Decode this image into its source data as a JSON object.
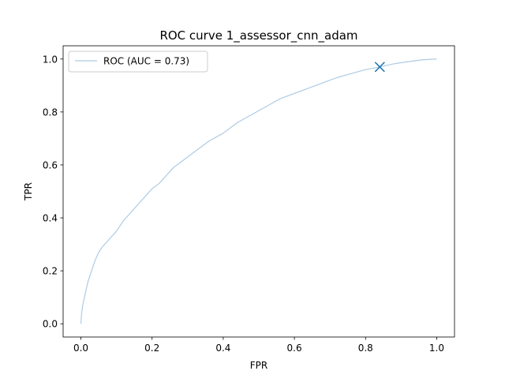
{
  "chart_data": {
    "type": "line",
    "title": "ROC curve 1_assessor_cnn_adam",
    "xlabel": "FPR",
    "ylabel": "TPR",
    "xlim": [
      -0.05,
      1.05
    ],
    "ylim": [
      -0.05,
      1.05
    ],
    "xticks": [
      0.0,
      0.2,
      0.4,
      0.6,
      0.8,
      1.0
    ],
    "yticks": [
      0.0,
      0.2,
      0.4,
      0.6,
      0.8,
      1.0
    ],
    "xtick_labels": [
      "0.0",
      "0.2",
      "0.4",
      "0.6",
      "0.8",
      "1.0"
    ],
    "ytick_labels": [
      "0.0",
      "0.2",
      "0.4",
      "0.6",
      "0.8",
      "1.0"
    ],
    "grid": false,
    "legend_position": "top-left",
    "series": [
      {
        "name": "ROC (AUC = 0.73)",
        "color": "#aecbe4",
        "x": [
          0.0,
          0.002,
          0.005,
          0.01,
          0.015,
          0.02,
          0.03,
          0.04,
          0.05,
          0.06,
          0.08,
          0.1,
          0.12,
          0.14,
          0.16,
          0.18,
          0.2,
          0.22,
          0.24,
          0.26,
          0.28,
          0.3,
          0.33,
          0.36,
          0.4,
          0.44,
          0.48,
          0.52,
          0.56,
          0.6,
          0.64,
          0.68,
          0.72,
          0.76,
          0.8,
          0.84,
          0.88,
          0.92,
          0.96,
          1.0
        ],
        "y": [
          0.0,
          0.04,
          0.07,
          0.1,
          0.13,
          0.16,
          0.2,
          0.24,
          0.27,
          0.29,
          0.32,
          0.35,
          0.39,
          0.42,
          0.45,
          0.48,
          0.51,
          0.53,
          0.56,
          0.59,
          0.61,
          0.63,
          0.66,
          0.69,
          0.72,
          0.76,
          0.79,
          0.82,
          0.85,
          0.87,
          0.89,
          0.91,
          0.93,
          0.945,
          0.96,
          0.97,
          0.982,
          0.99,
          0.997,
          1.0
        ]
      }
    ],
    "marker": {
      "x": 0.84,
      "y": 0.97,
      "symbol": "x",
      "color": "#1f77b4"
    }
  }
}
